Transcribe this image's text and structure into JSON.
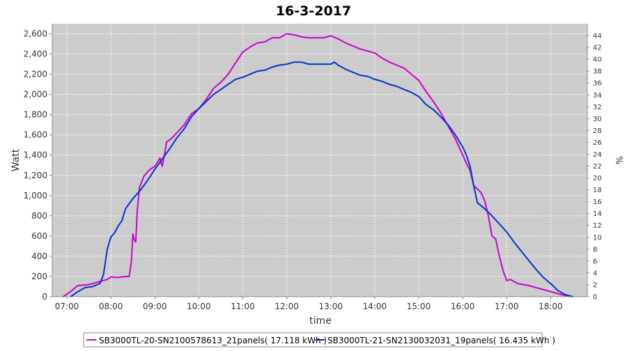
{
  "chart_data": {
    "type": "line",
    "title": "16-3-2017",
    "xlabel": "time",
    "ylabel": "Watt",
    "y2label": "%",
    "xlim": [
      "06:40",
      "18:50"
    ],
    "ylim": [
      0,
      2700
    ],
    "y2lim": [
      0,
      46
    ],
    "x_ticks": [
      "07:00",
      "08:00",
      "09:00",
      "10:00",
      "11:00",
      "12:00",
      "13:00",
      "14:00",
      "15:00",
      "16:00",
      "17:00",
      "18:00"
    ],
    "y_ticks": [
      "0",
      "200",
      "400",
      "600",
      "800",
      "1,000",
      "1,200",
      "1,400",
      "1,600",
      "1,800",
      "2,000",
      "2,200",
      "2,400",
      "2,600"
    ],
    "y2_ticks": [
      "0",
      "2",
      "4",
      "6",
      "8",
      "10",
      "12",
      "14",
      "16",
      "18",
      "20",
      "22",
      "24",
      "26",
      "28",
      "30",
      "32",
      "34",
      "36",
      "38",
      "40",
      "42",
      "44"
    ],
    "grid": true,
    "legend_position": "bottom",
    "colors": {
      "plot_bg": "#cccccc",
      "grid": "#ffffff",
      "series1": "#cc00cc",
      "series2": "#0033cc"
    },
    "series": [
      {
        "name": "SB3000TL-20-SN2100578613_21panels( 17.118 kWh )",
        "color": "#cc00cc",
        "points": [
          [
            "06:55",
            0
          ],
          [
            "07:05",
            50
          ],
          [
            "07:15",
            110
          ],
          [
            "07:30",
            120
          ],
          [
            "07:45",
            150
          ],
          [
            "07:55",
            170
          ],
          [
            "08:00",
            195
          ],
          [
            "08:10",
            190
          ],
          [
            "08:20",
            200
          ],
          [
            "08:25",
            200
          ],
          [
            "08:28",
            350
          ],
          [
            "08:30",
            620
          ],
          [
            "08:32",
            560
          ],
          [
            "08:34",
            540
          ],
          [
            "08:36",
            850
          ],
          [
            "08:39",
            1080
          ],
          [
            "08:45",
            1190
          ],
          [
            "08:52",
            1250
          ],
          [
            "09:00",
            1290
          ],
          [
            "09:07",
            1370
          ],
          [
            "09:10",
            1290
          ],
          [
            "09:13",
            1400
          ],
          [
            "09:16",
            1530
          ],
          [
            "09:22",
            1560
          ],
          [
            "09:30",
            1620
          ],
          [
            "09:40",
            1700
          ],
          [
            "09:50",
            1810
          ],
          [
            "10:00",
            1860
          ],
          [
            "10:10",
            1950
          ],
          [
            "10:20",
            2060
          ],
          [
            "10:30",
            2120
          ],
          [
            "10:40",
            2200
          ],
          [
            "10:50",
            2310
          ],
          [
            "11:00",
            2420
          ],
          [
            "11:10",
            2470
          ],
          [
            "11:20",
            2510
          ],
          [
            "11:30",
            2520
          ],
          [
            "11:40",
            2560
          ],
          [
            "11:50",
            2560
          ],
          [
            "12:00",
            2600
          ],
          [
            "12:10",
            2590
          ],
          [
            "12:20",
            2570
          ],
          [
            "12:30",
            2560
          ],
          [
            "12:40",
            2560
          ],
          [
            "12:50",
            2560
          ],
          [
            "13:00",
            2580
          ],
          [
            "13:10",
            2550
          ],
          [
            "13:20",
            2510
          ],
          [
            "13:30",
            2480
          ],
          [
            "13:40",
            2450
          ],
          [
            "13:50",
            2430
          ],
          [
            "14:00",
            2410
          ],
          [
            "14:10",
            2360
          ],
          [
            "14:20",
            2320
          ],
          [
            "14:30",
            2290
          ],
          [
            "14:40",
            2260
          ],
          [
            "14:50",
            2200
          ],
          [
            "15:00",
            2140
          ],
          [
            "15:10",
            2030
          ],
          [
            "15:20",
            1930
          ],
          [
            "15:30",
            1820
          ],
          [
            "15:40",
            1690
          ],
          [
            "15:50",
            1560
          ],
          [
            "16:00",
            1400
          ],
          [
            "16:05",
            1320
          ],
          [
            "16:10",
            1250
          ],
          [
            "16:15",
            1100
          ],
          [
            "16:25",
            1030
          ],
          [
            "16:30",
            950
          ],
          [
            "16:35",
            800
          ],
          [
            "16:40",
            600
          ],
          [
            "16:45",
            570
          ],
          [
            "16:50",
            400
          ],
          [
            "16:55",
            260
          ],
          [
            "17:00",
            160
          ],
          [
            "17:05",
            170
          ],
          [
            "17:15",
            130
          ],
          [
            "17:30",
            110
          ],
          [
            "17:45",
            80
          ],
          [
            "18:00",
            50
          ],
          [
            "18:15",
            20
          ],
          [
            "18:30",
            0
          ]
        ]
      },
      {
        "name": "SB3000TL-21-SN2130032031_19panels( 16.435 kWh )",
        "color": "#0033cc",
        "points": [
          [
            "07:05",
            0
          ],
          [
            "07:15",
            50
          ],
          [
            "07:25",
            90
          ],
          [
            "07:35",
            100
          ],
          [
            "07:45",
            130
          ],
          [
            "07:50",
            220
          ],
          [
            "07:55",
            470
          ],
          [
            "08:00",
            590
          ],
          [
            "08:05",
            630
          ],
          [
            "08:10",
            700
          ],
          [
            "08:15",
            750
          ],
          [
            "08:20",
            870
          ],
          [
            "08:30",
            970
          ],
          [
            "08:40",
            1050
          ],
          [
            "08:50",
            1150
          ],
          [
            "09:00",
            1260
          ],
          [
            "09:10",
            1360
          ],
          [
            "09:20",
            1460
          ],
          [
            "09:30",
            1570
          ],
          [
            "09:40",
            1660
          ],
          [
            "09:50",
            1780
          ],
          [
            "10:00",
            1860
          ],
          [
            "10:10",
            1930
          ],
          [
            "10:20",
            2000
          ],
          [
            "10:30",
            2050
          ],
          [
            "10:40",
            2100
          ],
          [
            "10:50",
            2150
          ],
          [
            "11:00",
            2170
          ],
          [
            "11:10",
            2200
          ],
          [
            "11:20",
            2230
          ],
          [
            "11:30",
            2240
          ],
          [
            "11:40",
            2270
          ],
          [
            "11:50",
            2290
          ],
          [
            "12:00",
            2300
          ],
          [
            "12:10",
            2320
          ],
          [
            "12:20",
            2320
          ],
          [
            "12:30",
            2300
          ],
          [
            "12:40",
            2300
          ],
          [
            "12:50",
            2300
          ],
          [
            "13:00",
            2300
          ],
          [
            "13:05",
            2320
          ],
          [
            "13:10",
            2290
          ],
          [
            "13:20",
            2250
          ],
          [
            "13:30",
            2220
          ],
          [
            "13:40",
            2190
          ],
          [
            "13:50",
            2180
          ],
          [
            "14:00",
            2150
          ],
          [
            "14:10",
            2130
          ],
          [
            "14:20",
            2100
          ],
          [
            "14:30",
            2080
          ],
          [
            "14:40",
            2050
          ],
          [
            "14:50",
            2020
          ],
          [
            "15:00",
            1980
          ],
          [
            "15:10",
            1900
          ],
          [
            "15:20",
            1850
          ],
          [
            "15:30",
            1780
          ],
          [
            "15:40",
            1700
          ],
          [
            "15:50",
            1600
          ],
          [
            "16:00",
            1480
          ],
          [
            "16:05",
            1400
          ],
          [
            "16:10",
            1290
          ],
          [
            "16:15",
            1100
          ],
          [
            "16:20",
            930
          ],
          [
            "16:30",
            870
          ],
          [
            "16:40",
            800
          ],
          [
            "16:50",
            720
          ],
          [
            "17:00",
            640
          ],
          [
            "17:10",
            540
          ],
          [
            "17:20",
            450
          ],
          [
            "17:30",
            360
          ],
          [
            "17:40",
            270
          ],
          [
            "17:50",
            190
          ],
          [
            "18:00",
            130
          ],
          [
            "18:10",
            60
          ],
          [
            "18:20",
            20
          ],
          [
            "18:30",
            0
          ]
        ]
      }
    ]
  }
}
